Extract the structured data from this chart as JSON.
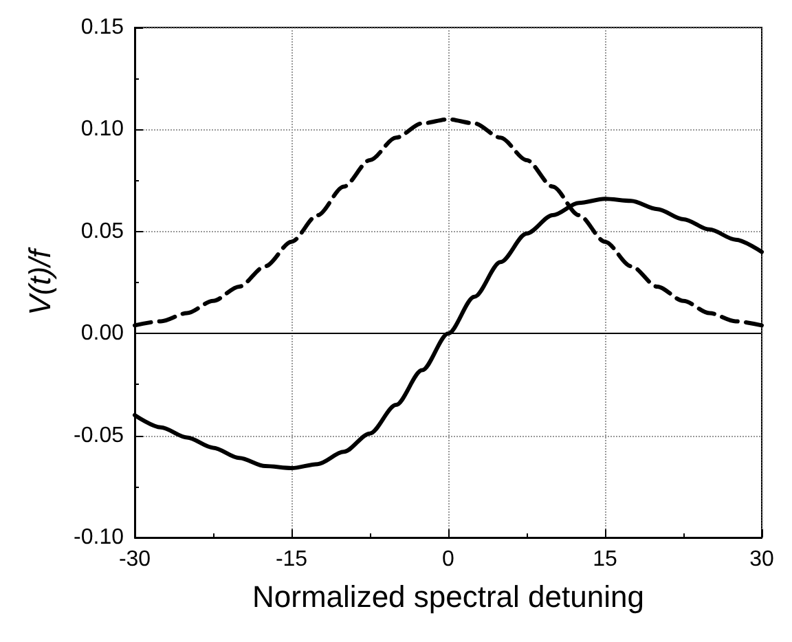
{
  "chart_data": {
    "type": "line",
    "xlabel": "Normalized spectral detuning",
    "ylabel": "V(t)/f",
    "x": [
      -30,
      -27.5,
      -25,
      -22.5,
      -20,
      -17.5,
      -15,
      -12.5,
      -10,
      -7.5,
      -5,
      -2.5,
      0,
      2.5,
      5,
      7.5,
      10,
      12.5,
      15,
      17.5,
      20,
      22.5,
      25,
      27.5,
      30
    ],
    "series": [
      {
        "color": "#000000",
        "line_style": "solid",
        "values": [
          -0.04,
          -0.046,
          -0.051,
          -0.056,
          -0.061,
          -0.065,
          -0.066,
          -0.064,
          -0.058,
          -0.049,
          -0.035,
          -0.018,
          0,
          0.018,
          0.035,
          0.049,
          0.058,
          0.064,
          0.066,
          0.065,
          0.061,
          0.056,
          0.051,
          0.046,
          0.04
        ]
      },
      {
        "color": "#000000",
        "line_style": "dashed",
        "values": [
          0.004,
          0.006,
          0.01,
          0.016,
          0.023,
          0.033,
          0.045,
          0.058,
          0.072,
          0.085,
          0.096,
          0.103,
          0.105,
          0.103,
          0.096,
          0.085,
          0.072,
          0.058,
          0.045,
          0.033,
          0.023,
          0.016,
          0.01,
          0.006,
          0.004
        ]
      }
    ],
    "xlim": [
      -30,
      30
    ],
    "xticks": [
      -30,
      -15,
      0,
      15,
      30
    ],
    "ylim": [
      -0.1,
      0.15
    ],
    "yticks": [
      {
        "value": -0.1,
        "label": "-0.10"
      },
      {
        "value": -0.05,
        "label": "-0.05"
      },
      {
        "value": 0,
        "label": "0.00"
      },
      {
        "value": 0.05,
        "label": "0.05"
      },
      {
        "value": 0.1,
        "label": "0.10"
      },
      {
        "value": 0.15,
        "label": "0.15"
      }
    ],
    "ref_lines": [
      {
        "axis": "y",
        "value": 0,
        "color": "#000000",
        "line_style": "solid"
      }
    ],
    "grid": true,
    "marker": "none"
  }
}
